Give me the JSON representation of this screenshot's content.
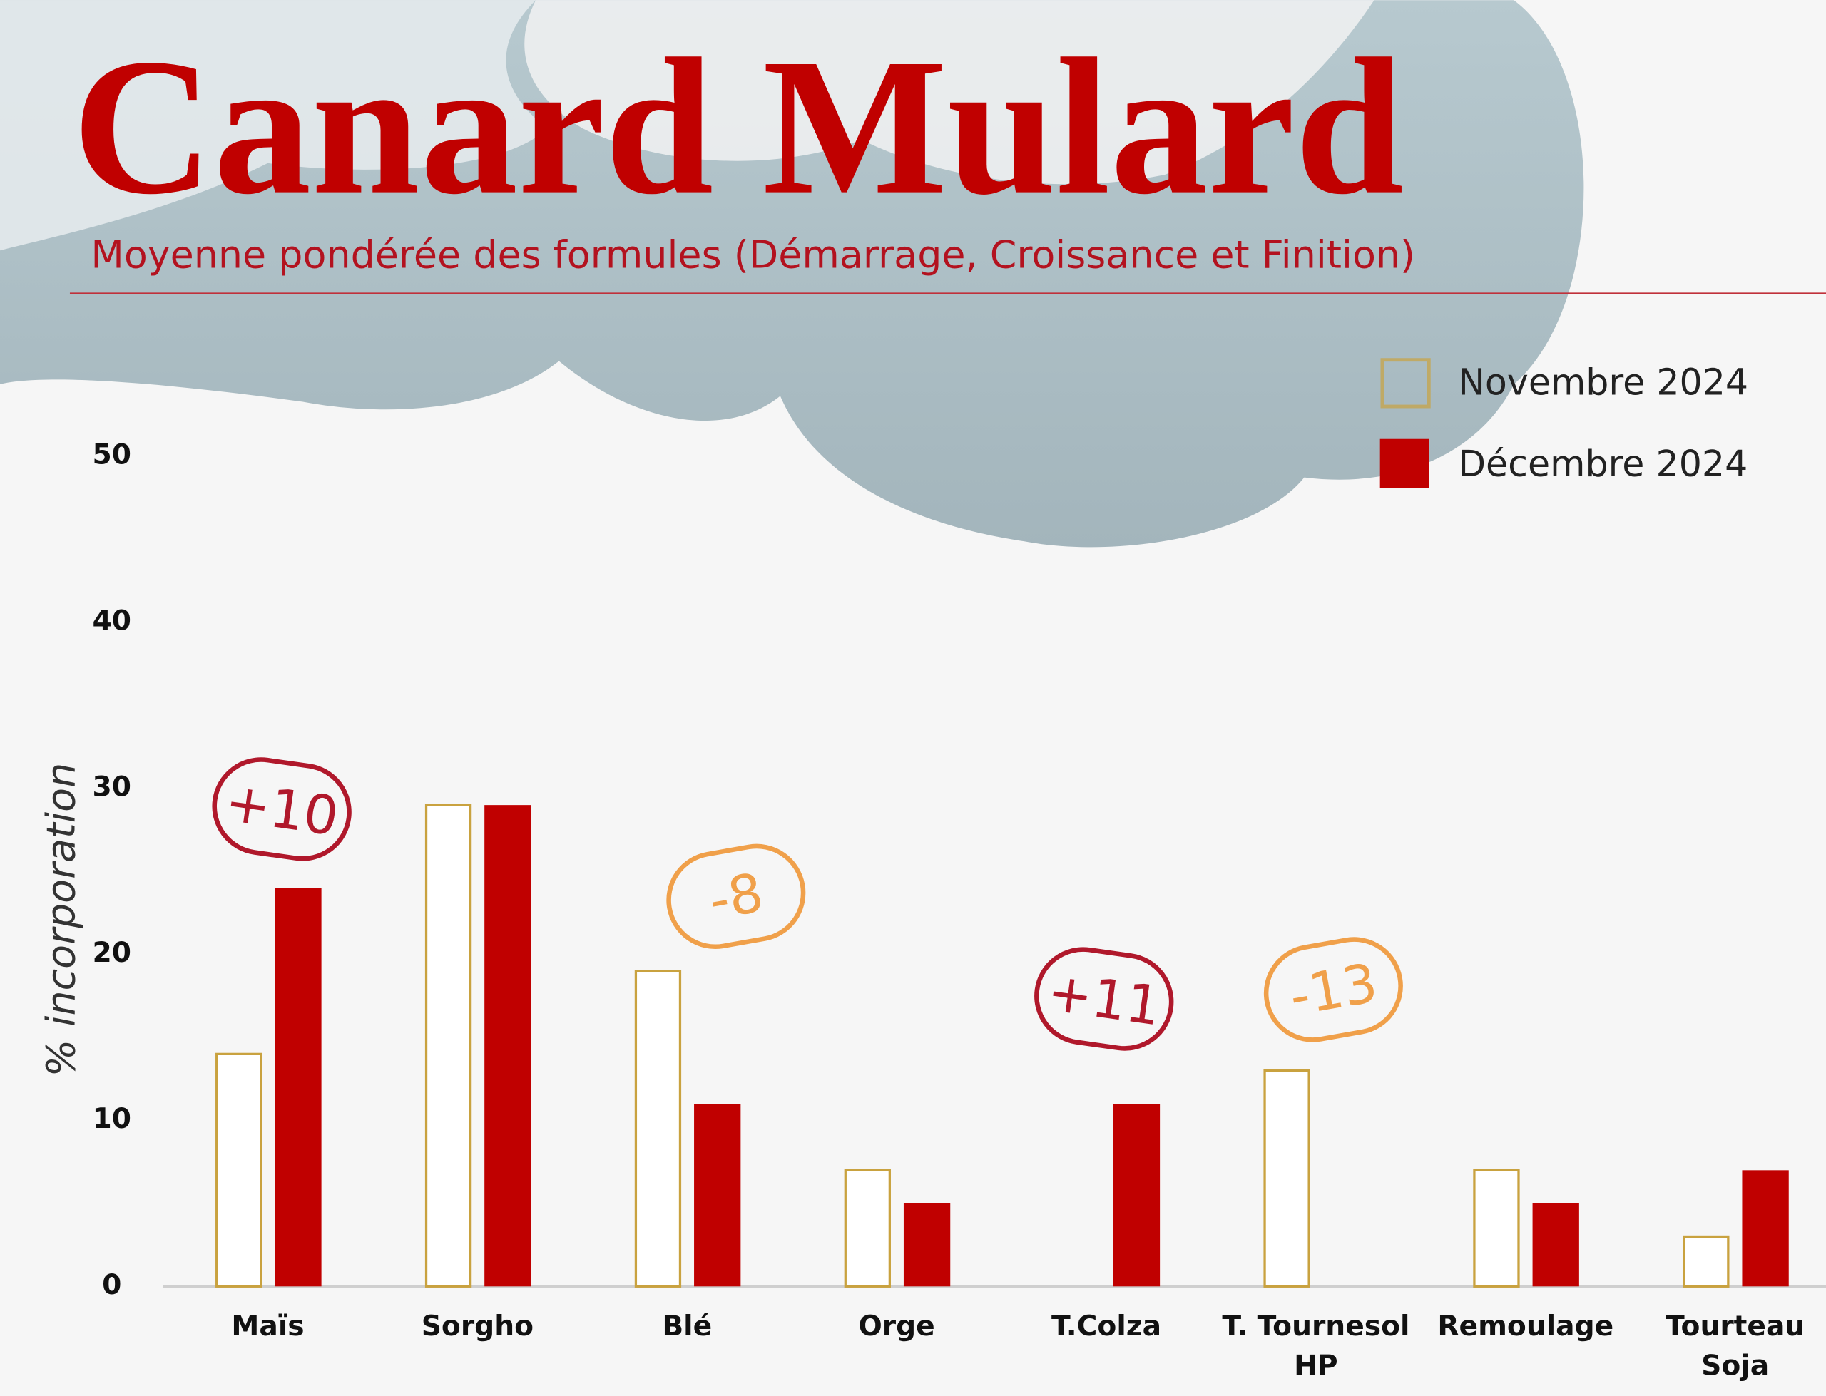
{
  "chart_data": {
    "type": "bar",
    "title": "Canard Mulard",
    "subtitle": "Moyenne pondérée des formules (Démarrage, Croissance et Finition)",
    "y_label": "% incorporation",
    "categories": [
      "Maïs",
      "Sorgho",
      "Blé",
      "Orge",
      "T.Colza",
      "T. Tournesol HP",
      "Remoulage",
      "Tourteau Soja"
    ],
    "series": [
      {
        "name": "Novembre 2024",
        "color": "#c9a23f",
        "values": [
          14,
          29,
          19,
          7,
          0,
          13,
          7,
          3
        ]
      },
      {
        "name": "Décembre 2024",
        "color": "#c00000",
        "values": [
          24,
          29,
          11,
          5,
          11,
          0,
          5,
          7
        ]
      }
    ],
    "ylim": [
      0,
      50
    ],
    "yticks": [
      0,
      10,
      20,
      30,
      40,
      50
    ],
    "annotations": [
      {
        "text": "+10",
        "color": "#b0182b"
      },
      {
        "text": "-8",
        "color": "#f0a04a"
      },
      {
        "text": "+11",
        "color": "#b0182b"
      },
      {
        "text": "-13",
        "color": "#f0a04a"
      }
    ]
  }
}
